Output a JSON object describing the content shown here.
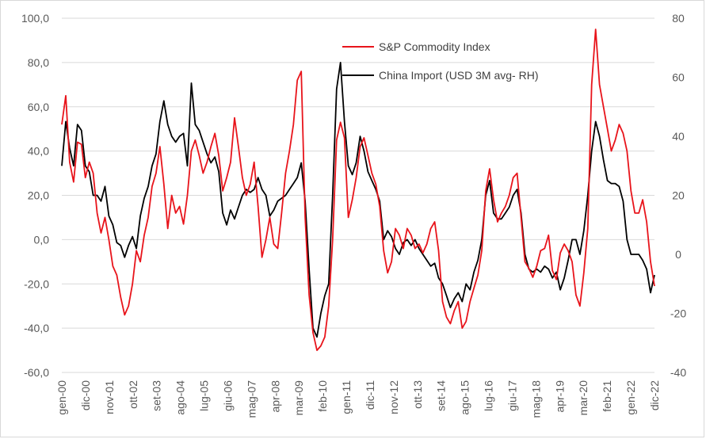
{
  "chart_data": {
    "type": "line",
    "title": "",
    "xlabel": "",
    "ylabel": "",
    "x_tick_labels": [
      "gen-00",
      "dic-00",
      "nov-01",
      "ott-02",
      "set-03",
      "ago-04",
      "lug-05",
      "giu-06",
      "mag-07",
      "apr-08",
      "mar-09",
      "feb-10",
      "gen-11",
      "dic-11",
      "nov-12",
      "ott-13",
      "set-14",
      "ago-15",
      "lug-16",
      "giu-17",
      "mag-18",
      "apr-19",
      "mar-20",
      "feb-21",
      "gen-22",
      "dic-22"
    ],
    "y_left": {
      "ylim": [
        -60,
        100
      ],
      "ticks": [
        "-60,0",
        "-40,0",
        "-20,0",
        "0,0",
        "20,0",
        "40,0",
        "60,0",
        "80,0",
        "100,0"
      ]
    },
    "y_right": {
      "ylim": [
        -40,
        80
      ],
      "ticks": [
        "-40",
        "-20",
        "0",
        "20",
        "40",
        "60",
        "80"
      ]
    },
    "grid": "horizontal",
    "legend_position": "top-center",
    "series": [
      {
        "name": "S&P Commodity Index",
        "axis": "left",
        "color": "#e8141b",
        "points": [
          [
            0,
            52
          ],
          [
            3,
            65
          ],
          [
            6,
            35
          ],
          [
            9,
            26
          ],
          [
            12,
            44
          ],
          [
            15,
            43
          ],
          [
            18,
            28
          ],
          [
            21,
            35
          ],
          [
            24,
            30
          ],
          [
            27,
            12
          ],
          [
            30,
            3
          ],
          [
            33,
            10
          ],
          [
            36,
            0
          ],
          [
            39,
            -12
          ],
          [
            42,
            -16
          ],
          [
            45,
            -26
          ],
          [
            48,
            -34
          ],
          [
            51,
            -30
          ],
          [
            54,
            -20
          ],
          [
            57,
            -5
          ],
          [
            60,
            -10
          ],
          [
            63,
            2
          ],
          [
            66,
            10
          ],
          [
            69,
            24
          ],
          [
            72,
            30
          ],
          [
            75,
            42
          ],
          [
            78,
            25
          ],
          [
            81,
            5
          ],
          [
            84,
            20
          ],
          [
            87,
            12
          ],
          [
            90,
            15
          ],
          [
            93,
            7
          ],
          [
            96,
            20
          ],
          [
            99,
            40
          ],
          [
            102,
            45
          ],
          [
            105,
            38
          ],
          [
            108,
            30
          ],
          [
            111,
            35
          ],
          [
            114,
            42
          ],
          [
            117,
            48
          ],
          [
            120,
            38
          ],
          [
            123,
            22
          ],
          [
            126,
            28
          ],
          [
            129,
            35
          ],
          [
            132,
            55
          ],
          [
            135,
            42
          ],
          [
            138,
            28
          ],
          [
            141,
            20
          ],
          [
            144,
            25
          ],
          [
            147,
            35
          ],
          [
            150,
            15
          ],
          [
            153,
            -8
          ],
          [
            156,
            0
          ],
          [
            159,
            10
          ],
          [
            162,
            -2
          ],
          [
            165,
            -4
          ],
          [
            168,
            12
          ],
          [
            171,
            30
          ],
          [
            174,
            40
          ],
          [
            177,
            52
          ],
          [
            180,
            72
          ],
          [
            183,
            76
          ],
          [
            186,
            10
          ],
          [
            189,
            -25
          ],
          [
            192,
            -42
          ],
          [
            195,
            -50
          ],
          [
            198,
            -48
          ],
          [
            201,
            -44
          ],
          [
            204,
            -30
          ],
          [
            207,
            0
          ],
          [
            210,
            45
          ],
          [
            213,
            53
          ],
          [
            216,
            46
          ],
          [
            219,
            10
          ],
          [
            222,
            18
          ],
          [
            225,
            28
          ],
          [
            228,
            42
          ],
          [
            231,
            46
          ],
          [
            234,
            38
          ],
          [
            237,
            30
          ],
          [
            240,
            25
          ],
          [
            243,
            15
          ],
          [
            246,
            -5
          ],
          [
            249,
            -15
          ],
          [
            252,
            -10
          ],
          [
            255,
            5
          ],
          [
            258,
            2
          ],
          [
            261,
            -4
          ],
          [
            264,
            5
          ],
          [
            267,
            2
          ],
          [
            270,
            -4
          ],
          [
            273,
            -2
          ],
          [
            276,
            -6
          ],
          [
            279,
            -2
          ],
          [
            282,
            5
          ],
          [
            285,
            8
          ],
          [
            288,
            -5
          ],
          [
            291,
            -28
          ],
          [
            294,
            -35
          ],
          [
            297,
            -38
          ],
          [
            300,
            -32
          ],
          [
            303,
            -28
          ],
          [
            306,
            -40
          ],
          [
            309,
            -37
          ],
          [
            312,
            -28
          ],
          [
            315,
            -22
          ],
          [
            318,
            -16
          ],
          [
            321,
            -5
          ],
          [
            324,
            22
          ],
          [
            327,
            32
          ],
          [
            330,
            18
          ],
          [
            333,
            8
          ],
          [
            336,
            12
          ],
          [
            339,
            15
          ],
          [
            342,
            20
          ],
          [
            345,
            28
          ],
          [
            348,
            30
          ],
          [
            351,
            10
          ],
          [
            354,
            -10
          ],
          [
            357,
            -13
          ],
          [
            360,
            -17
          ],
          [
            363,
            -12
          ],
          [
            366,
            -5
          ],
          [
            369,
            -4
          ],
          [
            372,
            2
          ],
          [
            375,
            -14
          ],
          [
            378,
            -18
          ],
          [
            381,
            -6
          ],
          [
            384,
            -2
          ],
          [
            387,
            -5
          ],
          [
            390,
            -10
          ],
          [
            393,
            -25
          ],
          [
            396,
            -30
          ],
          [
            399,
            -15
          ],
          [
            402,
            5
          ],
          [
            405,
            70
          ],
          [
            408,
            95
          ],
          [
            411,
            70
          ],
          [
            414,
            60
          ],
          [
            417,
            50
          ],
          [
            420,
            40
          ],
          [
            423,
            45
          ],
          [
            426,
            52
          ],
          [
            429,
            48
          ],
          [
            432,
            40
          ],
          [
            435,
            22
          ],
          [
            438,
            12
          ],
          [
            441,
            12
          ],
          [
            444,
            18
          ],
          [
            447,
            8
          ],
          [
            450,
            -10
          ],
          [
            453,
            -21
          ]
        ]
      },
      {
        "name": "China Import (USD 3M avg- RH)",
        "axis": "right",
        "color": "#000000",
        "points": [
          [
            0,
            30
          ],
          [
            3,
            45
          ],
          [
            6,
            36
          ],
          [
            9,
            30
          ],
          [
            12,
            44
          ],
          [
            15,
            42
          ],
          [
            18,
            30
          ],
          [
            21,
            28
          ],
          [
            24,
            20
          ],
          [
            27,
            20
          ],
          [
            30,
            18
          ],
          [
            33,
            23
          ],
          [
            36,
            13
          ],
          [
            39,
            10
          ],
          [
            42,
            4
          ],
          [
            45,
            3
          ],
          [
            48,
            -1
          ],
          [
            51,
            3
          ],
          [
            54,
            6
          ],
          [
            57,
            2
          ],
          [
            60,
            13
          ],
          [
            63,
            19
          ],
          [
            66,
            23
          ],
          [
            69,
            30
          ],
          [
            72,
            34
          ],
          [
            75,
            45
          ],
          [
            78,
            52
          ],
          [
            81,
            44
          ],
          [
            84,
            40
          ],
          [
            87,
            38
          ],
          [
            90,
            40
          ],
          [
            93,
            41
          ],
          [
            96,
            30
          ],
          [
            99,
            58
          ],
          [
            102,
            44
          ],
          [
            105,
            42
          ],
          [
            108,
            38
          ],
          [
            111,
            34
          ],
          [
            114,
            31
          ],
          [
            117,
            33
          ],
          [
            120,
            28
          ],
          [
            123,
            14
          ],
          [
            126,
            10
          ],
          [
            129,
            15
          ],
          [
            132,
            12
          ],
          [
            135,
            16
          ],
          [
            138,
            20
          ],
          [
            141,
            22
          ],
          [
            144,
            21
          ],
          [
            147,
            22
          ],
          [
            150,
            26
          ],
          [
            153,
            22
          ],
          [
            156,
            20
          ],
          [
            159,
            13
          ],
          [
            162,
            15
          ],
          [
            165,
            18
          ],
          [
            168,
            19
          ],
          [
            171,
            20
          ],
          [
            174,
            22
          ],
          [
            177,
            24
          ],
          [
            180,
            26
          ],
          [
            183,
            31
          ],
          [
            186,
            18
          ],
          [
            189,
            -5
          ],
          [
            192,
            -25
          ],
          [
            195,
            -28
          ],
          [
            198,
            -20
          ],
          [
            201,
            -14
          ],
          [
            204,
            -10
          ],
          [
            207,
            20
          ],
          [
            210,
            56
          ],
          [
            213,
            65
          ],
          [
            216,
            45
          ],
          [
            219,
            30
          ],
          [
            222,
            27
          ],
          [
            225,
            31
          ],
          [
            228,
            40
          ],
          [
            231,
            35
          ],
          [
            234,
            28
          ],
          [
            237,
            25
          ],
          [
            240,
            22
          ],
          [
            243,
            18
          ],
          [
            246,
            5
          ],
          [
            249,
            8
          ],
          [
            252,
            6
          ],
          [
            255,
            2
          ],
          [
            258,
            0
          ],
          [
            261,
            4
          ],
          [
            264,
            5
          ],
          [
            267,
            3
          ],
          [
            270,
            5
          ],
          [
            273,
            2
          ],
          [
            276,
            0
          ],
          [
            279,
            -2
          ],
          [
            282,
            -4
          ],
          [
            285,
            -3
          ],
          [
            288,
            -8
          ],
          [
            291,
            -10
          ],
          [
            294,
            -14
          ],
          [
            297,
            -18
          ],
          [
            300,
            -15
          ],
          [
            303,
            -13
          ],
          [
            306,
            -16
          ],
          [
            309,
            -10
          ],
          [
            312,
            -12
          ],
          [
            315,
            -6
          ],
          [
            318,
            -2
          ],
          [
            321,
            5
          ],
          [
            324,
            20
          ],
          [
            327,
            25
          ],
          [
            330,
            14
          ],
          [
            333,
            12
          ],
          [
            336,
            12
          ],
          [
            339,
            14
          ],
          [
            342,
            16
          ],
          [
            345,
            20
          ],
          [
            348,
            22
          ],
          [
            351,
            14
          ],
          [
            354,
            0
          ],
          [
            357,
            -5
          ],
          [
            360,
            -6
          ],
          [
            363,
            -5
          ],
          [
            366,
            -6
          ],
          [
            369,
            -4
          ],
          [
            372,
            -5
          ],
          [
            375,
            -8
          ],
          [
            378,
            -6
          ],
          [
            381,
            -12
          ],
          [
            384,
            -8
          ],
          [
            387,
            -2
          ],
          [
            390,
            5
          ],
          [
            393,
            5
          ],
          [
            396,
            0
          ],
          [
            399,
            8
          ],
          [
            402,
            20
          ],
          [
            405,
            35
          ],
          [
            408,
            45
          ],
          [
            411,
            40
          ],
          [
            414,
            32
          ],
          [
            417,
            25
          ],
          [
            420,
            24
          ],
          [
            423,
            24
          ],
          [
            426,
            23
          ],
          [
            429,
            18
          ],
          [
            432,
            5
          ],
          [
            435,
            0
          ],
          [
            438,
            0
          ],
          [
            441,
            0
          ],
          [
            444,
            -2
          ],
          [
            447,
            -5
          ],
          [
            450,
            -13
          ],
          [
            453,
            -7
          ]
        ]
      }
    ]
  }
}
